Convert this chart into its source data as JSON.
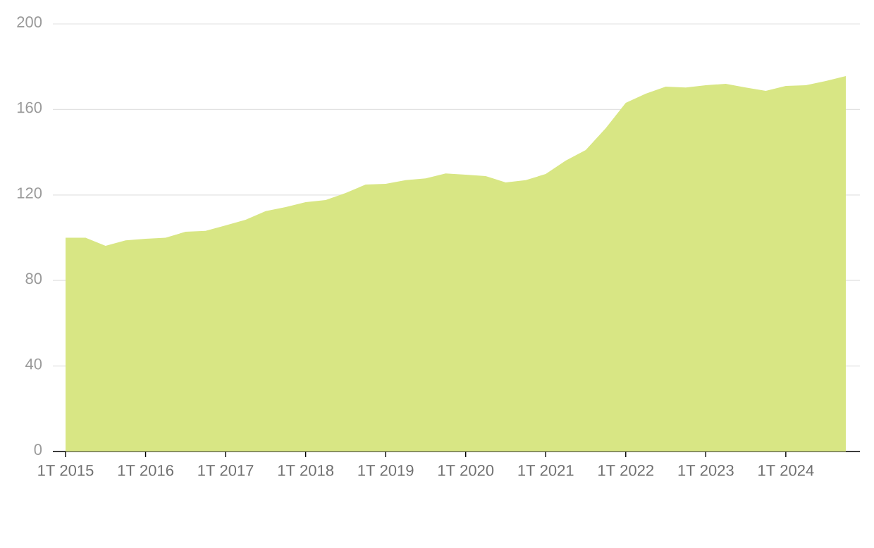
{
  "chart_data": {
    "type": "area",
    "categories": [
      "1T 2015",
      null,
      null,
      null,
      "1T 2016",
      null,
      null,
      null,
      "1T 2017",
      null,
      null,
      null,
      "1T 2018",
      null,
      null,
      null,
      "1T 2019",
      null,
      null,
      null,
      "1T 2020",
      null,
      null,
      null,
      "1T 2021",
      null,
      null,
      null,
      "1T 2022",
      null,
      null,
      null,
      "1T 2023",
      null,
      null,
      null,
      "1T 2024",
      null,
      null,
      null
    ],
    "values": [
      100,
      100,
      96.2,
      98.8,
      99.5,
      100,
      102.8,
      103.2,
      105.8,
      108.4,
      112.4,
      114.3,
      116.6,
      117.6,
      120.9,
      124.9,
      125.2,
      126.9,
      127.8,
      130.1,
      129.5,
      128.8,
      125.9,
      126.9,
      129.8,
      136.1,
      141,
      151.2,
      163.1,
      167.4,
      170.7,
      170.3,
      171.3,
      172,
      170.3,
      168.7,
      171,
      171.3,
      173.3,
      175.6
    ],
    "color": "#d8e684",
    "ylim": [
      0,
      200
    ],
    "yticks": [
      0,
      40,
      80,
      120,
      160,
      200
    ],
    "grid": "y"
  }
}
